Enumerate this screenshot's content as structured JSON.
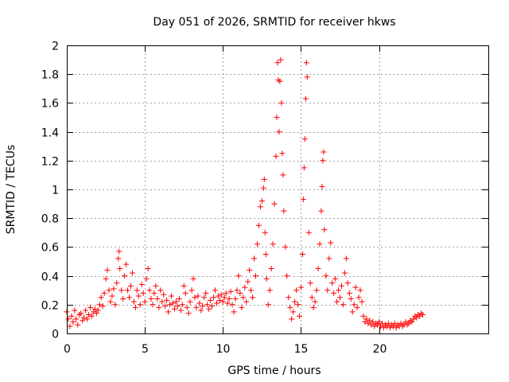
{
  "chart_data": {
    "type": "scatter",
    "title": "Day 051 of 2026, SRMTID for receiver hkws",
    "xlabel": "GPS time / hours",
    "ylabel": "SRMTID / TECUs",
    "xlim": [
      0,
      27
    ],
    "ylim": [
      0,
      2
    ],
    "xticks": [
      0,
      5,
      10,
      15,
      20
    ],
    "yticks": [
      0,
      0.2,
      0.4,
      0.6,
      0.8,
      1,
      1.2,
      1.4,
      1.6,
      1.8,
      2
    ],
    "xtick_labels": [
      "0",
      "5",
      "10",
      "15",
      "20"
    ],
    "ytick_labels": [
      "0",
      "0.2",
      "0.4",
      "0.6",
      "0.8",
      "1",
      "1.2",
      "1.4",
      "1.6",
      "1.8",
      "2"
    ],
    "grid": true,
    "marker": "+",
    "color": "#ff0000",
    "series": [
      {
        "name": "SRMTID",
        "points": [
          [
            0.0,
            0.15
          ],
          [
            0.1,
            0.1
          ],
          [
            0.2,
            0.05
          ],
          [
            0.3,
            0.12
          ],
          [
            0.4,
            0.08
          ],
          [
            0.5,
            0.16
          ],
          [
            0.6,
            0.1
          ],
          [
            0.7,
            0.06
          ],
          [
            0.8,
            0.13
          ],
          [
            0.9,
            0.14
          ],
          [
            1.0,
            0.09
          ],
          [
            1.1,
            0.11
          ],
          [
            1.2,
            0.16
          ],
          [
            1.3,
            0.1
          ],
          [
            1.4,
            0.13
          ],
          [
            1.5,
            0.18
          ],
          [
            1.6,
            0.12
          ],
          [
            1.7,
            0.15
          ],
          [
            1.8,
            0.17
          ],
          [
            1.9,
            0.14
          ],
          [
            2.0,
            0.16
          ],
          [
            2.1,
            0.2
          ],
          [
            2.2,
            0.25
          ],
          [
            2.3,
            0.19
          ],
          [
            2.4,
            0.28
          ],
          [
            2.5,
            0.38
          ],
          [
            2.6,
            0.44
          ],
          [
            2.7,
            0.3
          ],
          [
            2.8,
            0.22
          ],
          [
            2.9,
            0.26
          ],
          [
            3.0,
            0.31
          ],
          [
            3.1,
            0.2
          ],
          [
            3.2,
            0.35
          ],
          [
            3.3,
            0.52
          ],
          [
            3.35,
            0.57
          ],
          [
            3.4,
            0.45
          ],
          [
            3.5,
            0.3
          ],
          [
            3.6,
            0.24
          ],
          [
            3.7,
            0.4
          ],
          [
            3.8,
            0.48
          ],
          [
            3.9,
            0.3
          ],
          [
            4.0,
            0.25
          ],
          [
            4.1,
            0.33
          ],
          [
            4.2,
            0.42
          ],
          [
            4.3,
            0.22
          ],
          [
            4.4,
            0.18
          ],
          [
            4.5,
            0.3
          ],
          [
            4.6,
            0.26
          ],
          [
            4.7,
            0.2
          ],
          [
            4.8,
            0.34
          ],
          [
            4.9,
            0.28
          ],
          [
            5.0,
            0.22
          ],
          [
            5.1,
            0.38
          ],
          [
            5.2,
            0.45
          ],
          [
            5.3,
            0.3
          ],
          [
            5.4,
            0.24
          ],
          [
            5.5,
            0.2
          ],
          [
            5.6,
            0.28
          ],
          [
            5.7,
            0.33
          ],
          [
            5.8,
            0.24
          ],
          [
            5.9,
            0.18
          ],
          [
            6.0,
            0.3
          ],
          [
            6.1,
            0.22
          ],
          [
            6.2,
            0.27
          ],
          [
            6.3,
            0.19
          ],
          [
            6.4,
            0.23
          ],
          [
            6.5,
            0.15
          ],
          [
            6.6,
            0.2
          ],
          [
            6.7,
            0.26
          ],
          [
            6.8,
            0.21
          ],
          [
            6.9,
            0.17
          ],
          [
            7.0,
            0.22
          ],
          [
            7.1,
            0.19
          ],
          [
            7.2,
            0.24
          ],
          [
            7.3,
            0.16
          ],
          [
            7.4,
            0.2
          ],
          [
            7.5,
            0.33
          ],
          [
            7.6,
            0.28
          ],
          [
            7.7,
            0.18
          ],
          [
            7.8,
            0.14
          ],
          [
            7.9,
            0.22
          ],
          [
            8.0,
            0.3
          ],
          [
            8.1,
            0.38
          ],
          [
            8.2,
            0.25
          ],
          [
            8.3,
            0.18
          ],
          [
            8.4,
            0.26
          ],
          [
            8.5,
            0.21
          ],
          [
            8.6,
            0.16
          ],
          [
            8.7,
            0.19
          ],
          [
            8.8,
            0.25
          ],
          [
            8.9,
            0.28
          ],
          [
            9.0,
            0.2
          ],
          [
            9.1,
            0.17
          ],
          [
            9.2,
            0.23
          ],
          [
            9.3,
            0.19
          ],
          [
            9.4,
            0.25
          ],
          [
            9.5,
            0.3
          ],
          [
            9.6,
            0.21
          ],
          [
            9.7,
            0.26
          ],
          [
            9.8,
            0.23
          ],
          [
            9.9,
            0.27
          ],
          [
            10.0,
            0.22
          ],
          [
            10.1,
            0.25
          ],
          [
            10.2,
            0.28
          ],
          [
            10.3,
            0.21
          ],
          [
            10.4,
            0.24
          ],
          [
            10.5,
            0.29
          ],
          [
            10.6,
            0.2
          ],
          [
            10.7,
            0.15
          ],
          [
            10.8,
            0.24
          ],
          [
            10.9,
            0.3
          ],
          [
            11.0,
            0.4
          ],
          [
            11.1,
            0.28
          ],
          [
            11.2,
            0.18
          ],
          [
            11.3,
            0.25
          ],
          [
            11.4,
            0.32
          ],
          [
            11.5,
            0.22
          ],
          [
            11.6,
            0.36
          ],
          [
            11.7,
            0.44
          ],
          [
            11.8,
            0.3
          ],
          [
            11.9,
            0.25
          ],
          [
            12.0,
            0.52
          ],
          [
            12.1,
            0.4
          ],
          [
            12.2,
            0.62
          ],
          [
            12.3,
            0.75
          ],
          [
            12.4,
            0.88
          ],
          [
            12.5,
            0.92
          ],
          [
            12.6,
            1.01
          ],
          [
            12.65,
            1.07
          ],
          [
            12.7,
            0.7
          ],
          [
            12.75,
            0.55
          ],
          [
            12.8,
            0.38
          ],
          [
            12.9,
            0.2
          ],
          [
            13.0,
            0.3
          ],
          [
            13.1,
            0.45
          ],
          [
            13.2,
            0.62
          ],
          [
            13.3,
            0.9
          ],
          [
            13.4,
            1.23
          ],
          [
            13.45,
            1.5
          ],
          [
            13.5,
            1.88
          ],
          [
            13.55,
            1.76
          ],
          [
            13.6,
            1.4
          ],
          [
            13.65,
            1.75
          ],
          [
            13.7,
            1.9
          ],
          [
            13.75,
            1.6
          ],
          [
            13.8,
            1.25
          ],
          [
            13.85,
            1.1
          ],
          [
            13.9,
            0.85
          ],
          [
            14.0,
            0.6
          ],
          [
            14.1,
            0.4
          ],
          [
            14.2,
            0.25
          ],
          [
            14.3,
            0.18
          ],
          [
            14.4,
            0.1
          ],
          [
            14.5,
            0.15
          ],
          [
            14.6,
            0.22
          ],
          [
            14.7,
            0.3
          ],
          [
            14.8,
            0.2
          ],
          [
            14.9,
            0.12
          ],
          [
            15.0,
            0.32
          ],
          [
            15.1,
            0.55
          ],
          [
            15.15,
            0.93
          ],
          [
            15.2,
            1.15
          ],
          [
            15.25,
            1.35
          ],
          [
            15.3,
            1.63
          ],
          [
            15.35,
            1.88
          ],
          [
            15.4,
            1.78
          ],
          [
            15.5,
            0.7
          ],
          [
            15.6,
            0.35
          ],
          [
            15.7,
            0.25
          ],
          [
            15.8,
            0.18
          ],
          [
            15.9,
            0.22
          ],
          [
            16.0,
            0.3
          ],
          [
            16.1,
            0.45
          ],
          [
            16.2,
            0.62
          ],
          [
            16.3,
            0.85
          ],
          [
            16.35,
            1.02
          ],
          [
            16.4,
            1.2
          ],
          [
            16.45,
            1.26
          ],
          [
            16.5,
            0.72
          ],
          [
            16.6,
            0.4
          ],
          [
            16.7,
            0.3
          ],
          [
            16.8,
            0.52
          ],
          [
            16.9,
            0.63
          ],
          [
            17.0,
            0.35
          ],
          [
            17.1,
            0.28
          ],
          [
            17.2,
            0.38
          ],
          [
            17.3,
            0.22
          ],
          [
            17.4,
            0.3
          ],
          [
            17.5,
            0.25
          ],
          [
            17.6,
            0.33
          ],
          [
            17.7,
            0.2
          ],
          [
            17.8,
            0.42
          ],
          [
            17.9,
            0.52
          ],
          [
            18.0,
            0.35
          ],
          [
            18.1,
            0.28
          ],
          [
            18.2,
            0.24
          ],
          [
            18.3,
            0.15
          ],
          [
            18.4,
            0.2
          ],
          [
            18.5,
            0.32
          ],
          [
            18.6,
            0.18
          ],
          [
            18.7,
            0.25
          ],
          [
            18.8,
            0.3
          ],
          [
            18.9,
            0.22
          ],
          [
            19.0,
            0.12
          ],
          [
            19.1,
            0.08
          ],
          [
            19.2,
            0.1
          ],
          [
            19.3,
            0.07
          ],
          [
            19.4,
            0.09
          ],
          [
            19.5,
            0.06
          ],
          [
            19.6,
            0.08
          ],
          [
            19.7,
            0.05
          ],
          [
            19.8,
            0.07
          ],
          [
            19.9,
            0.06
          ],
          [
            20.0,
            0.08
          ],
          [
            20.1,
            0.05
          ],
          [
            20.2,
            0.07
          ],
          [
            20.3,
            0.04
          ],
          [
            20.4,
            0.06
          ],
          [
            20.5,
            0.05
          ],
          [
            20.6,
            0.07
          ],
          [
            20.7,
            0.04
          ],
          [
            20.8,
            0.06
          ],
          [
            20.9,
            0.05
          ],
          [
            21.0,
            0.07
          ],
          [
            21.1,
            0.04
          ],
          [
            21.2,
            0.06
          ],
          [
            21.3,
            0.05
          ],
          [
            21.4,
            0.07
          ],
          [
            21.5,
            0.05
          ],
          [
            21.6,
            0.06
          ],
          [
            21.7,
            0.08
          ],
          [
            21.8,
            0.06
          ],
          [
            21.9,
            0.07
          ],
          [
            22.0,
            0.09
          ],
          [
            22.1,
            0.08
          ],
          [
            22.2,
            0.1
          ],
          [
            22.3,
            0.12
          ],
          [
            22.4,
            0.11
          ],
          [
            22.5,
            0.13
          ],
          [
            22.6,
            0.12
          ],
          [
            22.7,
            0.14
          ],
          [
            22.8,
            0.13
          ]
        ]
      }
    ]
  }
}
